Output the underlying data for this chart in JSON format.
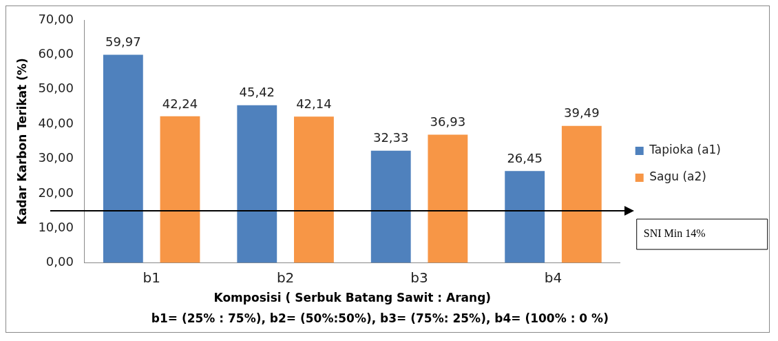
{
  "chart_data": {
    "type": "bar",
    "categories": [
      "b1",
      "b2",
      "b3",
      "b4"
    ],
    "series": [
      {
        "name": "Tapioka (a1)",
        "color": "#4f81bd",
        "values": [
          59.97,
          45.42,
          32.33,
          26.45
        ],
        "value_labels": [
          "59,97",
          "45,42",
          "32,33",
          "26,45"
        ]
      },
      {
        "name": "Sagu (a2)",
        "color": "#f79646",
        "values": [
          42.24,
          42.14,
          36.93,
          39.49
        ],
        "value_labels": [
          "42,24",
          "42,14",
          "36,93",
          "39,49"
        ]
      }
    ],
    "ylabel": "Kadar Karbon Terikat (%)",
    "xlabel": "Komposisi ( Serbuk Batang Sawit : Arang)",
    "annotations": [
      "b1= (25% : 75%), b2= (50%:50%), b3= (75%: 25%), b4= (100% : 0 %)"
    ],
    "ylim": [
      0,
      70
    ],
    "yticks": [
      {
        "value": 0,
        "label": "0,00"
      },
      {
        "value": 10,
        "label": "10,00"
      },
      {
        "value": 20,
        "label": "20,00"
      },
      {
        "value": 30,
        "label": "30,00"
      },
      {
        "value": 40,
        "label": "40,00"
      },
      {
        "value": 50,
        "label": "50,00"
      },
      {
        "value": 60,
        "label": "60,00"
      },
      {
        "value": 70,
        "label": "70,00"
      }
    ],
    "ref_lines": [
      {
        "axis": "y",
        "value": 15,
        "label": "SNI Min 14%",
        "color": "#000000"
      }
    ],
    "legend": "right",
    "grid": false
  }
}
